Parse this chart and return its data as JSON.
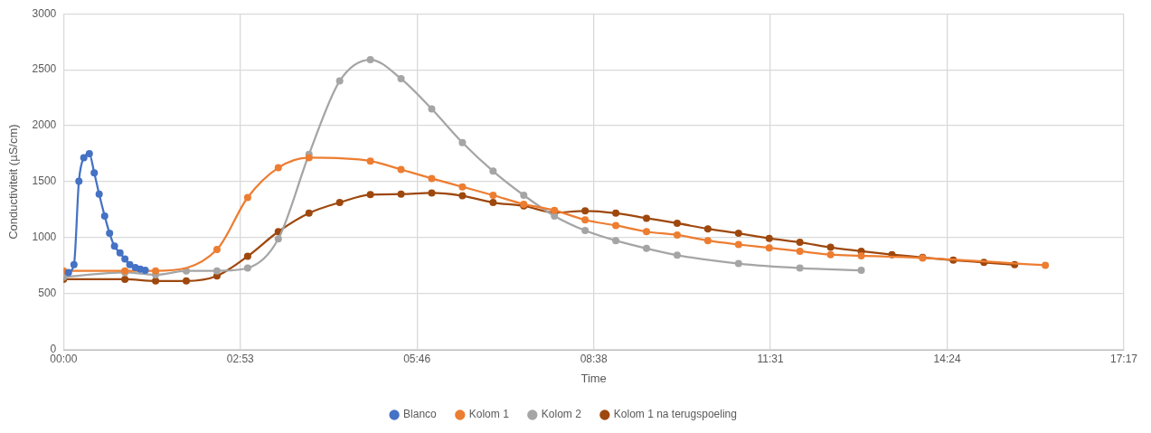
{
  "chart_data": {
    "type": "line",
    "xlabel": "Time",
    "ylabel": "Conductiviteit (µS/cm)",
    "xlim": [
      0,
      17.28
    ],
    "xticks": [
      {
        "value": 0,
        "label": "00:00"
      },
      {
        "value": 2.88,
        "label": "02:53"
      },
      {
        "value": 5.76,
        "label": "05:46"
      },
      {
        "value": 8.64,
        "label": "08:38"
      },
      {
        "value": 11.52,
        "label": "11:31"
      },
      {
        "value": 14.4,
        "label": "14:24"
      },
      {
        "value": 17.28,
        "label": "17:17"
      }
    ],
    "ylim": [
      0,
      3000
    ],
    "yticks": [
      0,
      500,
      1000,
      1500,
      2000,
      2500,
      3000
    ],
    "grid": true,
    "legend": "bottom",
    "marker": "circle",
    "line_style": "solid",
    "series": [
      {
        "name": "Blanco",
        "color": "#4472c4",
        "x": [
          0.08,
          0.17,
          0.25,
          0.33,
          0.42,
          0.5,
          0.58,
          0.67,
          0.75,
          0.83,
          0.92,
          1,
          1.08,
          1.17,
          1.25,
          1.33
        ],
        "values": [
          690,
          760,
          1505,
          1715,
          1750,
          1580,
          1390,
          1195,
          1040,
          925,
          865,
          810,
          760,
          735,
          720,
          710
        ]
      },
      {
        "name": "Kolom 1",
        "color": "#ed7d31",
        "x": [
          0,
          1,
          1.5,
          2.5,
          3,
          3.5,
          4,
          5,
          5.5,
          6,
          6.5,
          7,
          7.5,
          8,
          8.5,
          9,
          9.5,
          10,
          10.5,
          11,
          11.5,
          12,
          12.5,
          13,
          14,
          16
        ],
        "values": [
          705,
          705,
          705,
          895,
          1360,
          1625,
          1715,
          1685,
          1610,
          1530,
          1455,
          1380,
          1300,
          1245,
          1160,
          1110,
          1055,
          1025,
          975,
          940,
          910,
          880,
          850,
          840,
          820,
          755
        ]
      },
      {
        "name": "Kolom 2",
        "color": "#a5a5a5",
        "x": [
          0,
          1,
          1.5,
          2,
          2.5,
          3,
          3.5,
          4,
          4.5,
          5,
          5.5,
          6,
          6.5,
          7,
          7.5,
          8,
          8.5,
          9,
          9.5,
          10,
          11,
          12,
          13
        ],
        "values": [
          650,
          690,
          670,
          705,
          705,
          730,
          990,
          1745,
          2400,
          2590,
          2420,
          2150,
          1850,
          1595,
          1380,
          1195,
          1065,
          975,
          905,
          845,
          770,
          730,
          710
        ]
      },
      {
        "name": "Kolom 1 na terugspoeling",
        "color": "#9e480e",
        "x": [
          0,
          1,
          1.5,
          2,
          2.5,
          3,
          3.5,
          4,
          4.5,
          5,
          5.5,
          6,
          6.5,
          7,
          7.5,
          8,
          8.5,
          9,
          9.5,
          10,
          10.5,
          11,
          11.5,
          12,
          12.5,
          13,
          13.5,
          14,
          14.5,
          15,
          15.5
        ],
        "values": [
          630,
          630,
          615,
          615,
          660,
          835,
          1055,
          1220,
          1315,
          1385,
          1390,
          1400,
          1375,
          1315,
          1285,
          1225,
          1240,
          1220,
          1175,
          1130,
          1080,
          1040,
          995,
          960,
          915,
          880,
          850,
          825,
          800,
          780,
          760
        ]
      }
    ]
  }
}
